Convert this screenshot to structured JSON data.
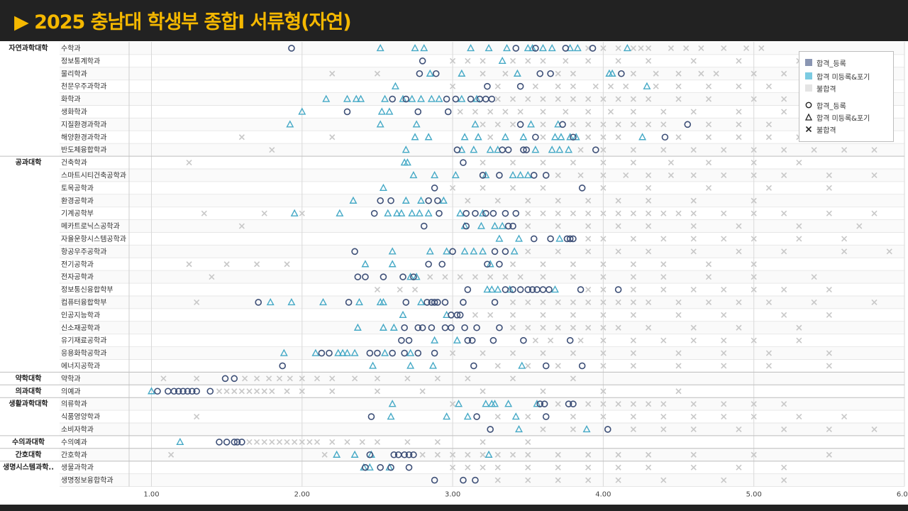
{
  "title": "▶ 2025 충남대 학생부 종합Ⅰ 서류형(자연)",
  "legend": {
    "items": [
      {
        "label": "합격_등록",
        "kind": "swatch",
        "color": "#8a96b3"
      },
      {
        "label": "합격 미등록&포기",
        "kind": "swatch",
        "color": "#7ccbe2"
      },
      {
        "label": "불합격",
        "kind": "swatch",
        "color": "#e4e4e4"
      },
      {
        "label": "합격_등록",
        "kind": "circle"
      },
      {
        "label": "합격 미등록&포기",
        "kind": "triangle"
      },
      {
        "label": "불합격",
        "kind": "cross"
      }
    ]
  },
  "colors": {
    "registered": "#3d4f77",
    "not_registered": "#45a9c6",
    "rejected": "#c8c8c8",
    "grid": "#d9d9d9",
    "band": "#efefef"
  },
  "chart_data": {
    "type": "scatter",
    "xlim": [
      1.0,
      6.0
    ],
    "xticks": [
      "1.00",
      "2.00",
      "3.00",
      "4.00",
      "5.00",
      "6.00"
    ],
    "groups": [
      {
        "name": "자연과학대학",
        "start": 0,
        "end": 8
      },
      {
        "name": "공과대학",
        "start": 9,
        "end": 25
      },
      {
        "name": "약학대학",
        "start": 26,
        "end": 26
      },
      {
        "name": "의과대학",
        "start": 27,
        "end": 27
      },
      {
        "name": "생활과학대학",
        "start": 28,
        "end": 30
      },
      {
        "name": "수의과대학",
        "start": 31,
        "end": 31
      },
      {
        "name": "간호대학",
        "start": 32,
        "end": 32
      },
      {
        "name": "생명시스템과학..",
        "start": 33,
        "end": 34
      }
    ],
    "departments": [
      {
        "name": "수학과",
        "reg": [
          1.93,
          3.42,
          3.55,
          3.75,
          3.93
        ],
        "unreg": [
          2.52,
          2.75,
          2.81,
          3.12,
          3.24,
          3.36,
          3.5,
          3.53,
          3.6,
          3.66,
          3.78,
          3.83,
          4.16
        ],
        "rej": [
          3.9,
          4.0,
          4.1,
          4.2,
          4.25,
          4.3,
          4.45,
          4.55,
          4.65,
          4.8,
          4.95,
          5.05
        ]
      },
      {
        "name": "정보통계학과",
        "reg": [
          2.8
        ],
        "unreg": [
          3.33
        ],
        "rej": [
          3.0,
          3.1,
          3.2,
          3.4,
          3.5,
          3.6,
          3.75,
          3.9,
          4.1,
          4.3,
          4.6,
          4.9,
          5.3
        ]
      },
      {
        "name": "물리학과",
        "reg": [
          2.78,
          2.89,
          3.58,
          3.65,
          4.12
        ],
        "unreg": [
          2.85,
          3.06,
          3.43,
          4.04,
          4.06
        ],
        "rej": [
          2.2,
          2.5,
          3.2,
          3.35,
          3.7,
          3.8,
          4.2,
          4.35,
          4.5,
          4.65,
          4.75,
          5.0,
          5.2,
          5.5,
          5.75
        ]
      },
      {
        "name": "천문우주과학과",
        "reg": [
          3.23,
          3.45
        ],
        "unreg": [
          2.62,
          4.29
        ],
        "rej": [
          3.0,
          3.3,
          3.55,
          3.7,
          3.8,
          3.95,
          4.05,
          4.15,
          4.35,
          4.5,
          4.7,
          4.9,
          5.1
        ]
      },
      {
        "name": "화학과",
        "reg": [
          2.6,
          2.69,
          2.96,
          3.02,
          3.12,
          3.18,
          3.22,
          3.26
        ],
        "unreg": [
          2.16,
          2.3,
          2.36,
          2.39,
          2.55,
          2.67,
          2.73,
          2.79,
          2.86,
          2.91,
          3.06,
          3.16
        ],
        "rej": [
          3.3,
          3.4,
          3.5,
          3.6,
          3.7,
          3.8,
          3.9,
          4.0,
          4.1,
          4.2,
          4.3,
          4.5,
          4.7,
          5.0,
          5.2
        ]
      },
      {
        "name": "생화학과",
        "reg": [
          2.3,
          2.77,
          2.97
        ],
        "unreg": [
          2.0,
          2.53,
          2.58
        ],
        "rej": [
          3.05,
          3.15,
          3.25,
          3.35,
          3.45,
          3.6,
          3.75,
          3.9,
          4.05,
          4.2,
          4.4,
          4.6,
          4.9,
          5.2
        ]
      },
      {
        "name": "지질환경과학과",
        "reg": [
          3.45,
          3.73,
          4.56
        ],
        "unreg": [
          1.92,
          2.52,
          2.76,
          3.15,
          3.52,
          3.7
        ],
        "rej": [
          3.2,
          3.3,
          3.4,
          3.6,
          3.8,
          3.9,
          4.0,
          4.1,
          4.2,
          4.3,
          4.4,
          4.7,
          4.9,
          5.1
        ]
      },
      {
        "name": "해양환경과학과",
        "reg": [
          3.55,
          3.8,
          4.41
        ],
        "unreg": [
          2.75,
          2.84,
          3.08,
          3.17,
          3.35,
          3.47,
          3.68,
          3.72,
          3.78,
          3.82,
          4.26
        ],
        "rej": [
          1.6,
          2.2,
          3.25,
          3.6,
          3.9,
          4.0,
          4.1,
          4.5,
          4.7,
          4.9,
          5.1,
          5.3
        ]
      },
      {
        "name": "반도체융합학과",
        "reg": [
          3.03,
          3.33,
          3.37,
          3.47,
          3.49,
          3.95
        ],
        "unreg": [
          2.69,
          3.06,
          3.14,
          3.25,
          3.3,
          3.55,
          3.66,
          3.71,
          3.77
        ],
        "rej": [
          1.8,
          3.85,
          4.0,
          4.2,
          4.4,
          4.6,
          4.8,
          5.0,
          5.2,
          5.4,
          5.6,
          5.8
        ]
      },
      {
        "name": "건축학과",
        "reg": [
          3.07
        ],
        "unreg": [
          2.68,
          2.7
        ],
        "rej": [
          1.25,
          3.2,
          3.4,
          3.6,
          3.8,
          4.0,
          4.2,
          4.45,
          4.7,
          5.0,
          5.3
        ]
      },
      {
        "name": "스마트시티건축공학과",
        "reg": [
          3.2,
          3.31,
          3.54,
          3.62
        ],
        "unreg": [
          2.74,
          2.88,
          3.02,
          3.22,
          3.4,
          3.45,
          3.5
        ],
        "rej": [
          3.7,
          3.85,
          4.0,
          4.15,
          4.3,
          4.45,
          4.6,
          4.8,
          5.0,
          5.2,
          5.5,
          5.8
        ]
      },
      {
        "name": "토목공학과",
        "reg": [
          2.88,
          3.86
        ],
        "unreg": [
          2.54
        ],
        "rej": [
          3.0,
          3.2,
          3.4,
          3.6,
          4.0,
          4.3,
          4.7,
          5.1,
          5.5
        ]
      },
      {
        "name": "환경공학과",
        "reg": [
          2.52,
          2.59,
          2.84,
          2.9
        ],
        "unreg": [
          2.34,
          2.69,
          2.79,
          2.94
        ],
        "rej": [
          3.1,
          3.3,
          3.5,
          3.7,
          3.9,
          4.1,
          4.3,
          4.6,
          5.0
        ]
      },
      {
        "name": "기계공학부",
        "reg": [
          2.48,
          2.91,
          3.09,
          3.15,
          3.22,
          3.27,
          3.35,
          3.42
        ],
        "unreg": [
          1.95,
          2.25,
          2.57,
          2.63,
          2.66,
          2.73,
          2.78,
          2.84,
          3.05,
          3.2
        ],
        "rej": [
          1.35,
          1.75,
          2.0,
          3.5,
          3.6,
          3.7,
          3.8,
          3.9,
          4.0,
          4.1,
          4.2,
          4.3,
          4.4,
          4.5,
          4.6,
          4.8,
          5.0,
          5.2,
          5.5,
          5.8
        ]
      },
      {
        "name": "메카트로닉스공학과",
        "reg": [
          2.81,
          3.09,
          3.37,
          3.4
        ],
        "unreg": [
          3.08,
          3.19,
          3.28,
          3.33
        ],
        "rej": [
          1.6,
          3.5,
          3.7,
          3.9,
          4.1,
          4.3,
          4.6,
          4.9,
          5.3,
          5.7
        ]
      },
      {
        "name": "자율운항시스템공학과",
        "reg": [
          3.54,
          3.65,
          3.76,
          3.78,
          3.8
        ],
        "unreg": [
          3.31,
          3.44,
          3.71
        ],
        "rej": [
          3.9,
          4.0,
          4.2,
          4.4,
          4.6,
          4.8,
          5.0,
          5.3,
          5.6
        ]
      },
      {
        "name": "항공우주공학과",
        "reg": [
          2.35,
          3.0,
          3.28,
          3.35
        ],
        "unreg": [
          2.6,
          2.85,
          2.96,
          3.08,
          3.14,
          3.2,
          3.41
        ],
        "rej": [
          3.5,
          3.7,
          3.9,
          4.1,
          4.3,
          4.6,
          4.9,
          5.2,
          5.6,
          5.9
        ]
      },
      {
        "name": "전기공학과",
        "reg": [
          2.84,
          2.93,
          3.23,
          3.31
        ],
        "unreg": [
          2.42,
          2.6,
          3.25
        ],
        "rej": [
          1.25,
          1.5,
          1.7,
          1.9,
          3.4,
          3.6,
          3.8,
          4.0,
          4.2,
          4.4,
          4.7,
          5.0
        ]
      },
      {
        "name": "전자공학과",
        "reg": [
          2.37,
          2.42,
          2.54,
          2.67,
          2.74
        ],
        "unreg": [
          2.72,
          2.76
        ],
        "rej": [
          1.4,
          2.85,
          2.95,
          3.05,
          3.15,
          3.25,
          3.35,
          3.45,
          3.6,
          3.8,
          4.0,
          4.2,
          4.4,
          4.7,
          5.0,
          5.4
        ]
      },
      {
        "name": "정보통신융합학부",
        "reg": [
          3.1,
          3.35,
          3.4,
          3.45,
          3.5,
          3.53,
          3.56,
          3.6,
          3.64,
          3.85,
          4.1
        ],
        "unreg": [
          3.23,
          3.26,
          3.3,
          3.38,
          3.68
        ],
        "rej": [
          2.5,
          2.65,
          2.75,
          3.9,
          4.0,
          4.2,
          4.4,
          4.6,
          4.8,
          5.0,
          5.2,
          5.5
        ]
      },
      {
        "name": "컴퓨터융합학부",
        "reg": [
          1.71,
          2.31,
          2.69,
          2.83,
          2.86,
          2.88,
          2.9,
          2.95,
          3.07,
          3.28
        ],
        "unreg": [
          1.79,
          1.93,
          2.14,
          2.38,
          2.52,
          2.54,
          2.79
        ],
        "rej": [
          1.3,
          3.4,
          3.5,
          3.6,
          3.7,
          3.8,
          3.9,
          4.0,
          4.1,
          4.2,
          4.3,
          4.5,
          4.7,
          4.9,
          5.1,
          5.4,
          5.8
        ]
      },
      {
        "name": "인공지능학과",
        "reg": [
          2.99,
          3.03,
          3.05
        ],
        "unreg": [
          2.67,
          2.96
        ],
        "rej": [
          3.15,
          3.25,
          3.4,
          3.6,
          3.8,
          4.0,
          4.2,
          4.5,
          4.8,
          5.2,
          5.5
        ]
      },
      {
        "name": "신소재공학과",
        "reg": [
          2.68,
          2.77,
          2.8,
          2.86,
          2.95,
          2.99,
          3.08,
          3.16,
          3.31
        ],
        "unreg": [
          2.37,
          2.54,
          2.61
        ],
        "rej": [
          3.4,
          3.5,
          3.6,
          3.7,
          3.8,
          3.9,
          4.0,
          4.1,
          4.3,
          4.6,
          4.9,
          5.3
        ]
      },
      {
        "name": "유기재료공학과",
        "reg": [
          2.66,
          2.71,
          3.1,
          3.13,
          3.27,
          3.47,
          3.78
        ],
        "unreg": [
          2.88,
          3.03
        ],
        "rej": [
          3.55,
          3.65,
          3.85,
          4.0,
          4.2,
          4.4,
          4.6,
          4.8,
          5.0,
          5.3
        ]
      },
      {
        "name": "응용화학공학과",
        "reg": [
          2.13,
          2.18,
          2.45,
          2.5,
          2.6,
          2.68,
          2.77,
          2.88
        ],
        "unreg": [
          1.88,
          2.09,
          2.24,
          2.27,
          2.3,
          2.35,
          2.55,
          2.72
        ],
        "rej": [
          3.0,
          3.2,
          3.4,
          3.6,
          3.8,
          4.0,
          4.2,
          4.5,
          4.8,
          5.1,
          5.5
        ]
      },
      {
        "name": "에너지공학과",
        "reg": [
          1.87,
          3.14,
          3.62,
          3.86
        ],
        "unreg": [
          2.47,
          2.72,
          2.87,
          3.46
        ],
        "rej": [
          3.3,
          3.5,
          3.7,
          4.0,
          4.2,
          4.5,
          4.8,
          5.1,
          5.5
        ]
      },
      {
        "name": "약학과",
        "reg": [
          1.49,
          1.55
        ],
        "unreg": [],
        "rej": [
          1.08,
          1.3,
          1.62,
          1.7,
          1.78,
          1.85,
          1.92,
          2.0,
          2.1,
          2.2,
          2.35,
          2.5,
          2.7,
          2.9,
          3.1,
          3.4,
          3.8
        ]
      },
      {
        "name": "의예과",
        "reg": [
          1.04,
          1.11,
          1.15,
          1.18,
          1.21,
          1.24,
          1.27,
          1.3,
          1.39
        ],
        "unreg": [
          1.0
        ],
        "rej": [
          1.45,
          1.5,
          1.55,
          1.6,
          1.65,
          1.7,
          1.75,
          1.8,
          1.9,
          2.0,
          2.2,
          2.5,
          2.8,
          3.2,
          3.6,
          4.0,
          4.5
        ]
      },
      {
        "name": "의류학과",
        "reg": [
          3.58,
          3.61,
          3.77,
          3.8
        ],
        "unreg": [
          2.6,
          3.04,
          3.22,
          3.26,
          3.28,
          3.37,
          3.56
        ],
        "rej": [
          3.0,
          3.7,
          3.9,
          4.0,
          4.1,
          4.2,
          4.3,
          4.4,
          4.6,
          4.8,
          5.0,
          5.2
        ]
      },
      {
        "name": "식품영양학과",
        "reg": [
          2.46,
          3.16,
          3.62
        ],
        "unreg": [
          2.59,
          2.96,
          3.1,
          3.42
        ],
        "rej": [
          1.3,
          3.3,
          3.5,
          3.8,
          4.0,
          4.2,
          4.4,
          4.6,
          4.8,
          5.0,
          5.3,
          5.6
        ]
      },
      {
        "name": "소비자학과",
        "reg": [
          3.25,
          4.03
        ],
        "unreg": [
          3.44,
          3.89
        ],
        "rej": [
          3.6,
          3.8,
          4.2,
          4.4,
          4.6,
          4.9,
          5.2,
          5.5,
          5.8
        ]
      },
      {
        "name": "수의예과",
        "reg": [
          1.45,
          1.5,
          1.55,
          1.57,
          1.6
        ],
        "unreg": [
          1.19
        ],
        "rej": [
          1.65,
          1.7,
          1.75,
          1.8,
          1.85,
          1.9,
          1.95,
          2.0,
          2.05,
          2.1,
          2.2,
          2.3,
          2.4,
          2.5,
          2.7,
          2.9,
          3.2,
          3.5
        ]
      },
      {
        "name": "간호학과",
        "reg": [
          2.45,
          2.61,
          2.64,
          2.68,
          2.71,
          2.74
        ],
        "unreg": [
          2.23,
          2.35,
          2.46,
          3.24
        ],
        "rej": [
          1.13,
          2.15,
          2.8,
          2.9,
          3.0,
          3.1,
          3.2,
          3.3,
          3.4,
          3.5,
          3.7,
          3.9,
          4.1,
          4.3,
          4.6,
          5.0,
          5.5
        ]
      },
      {
        "name": "생물과학과",
        "reg": [
          2.42,
          2.52,
          2.59,
          2.71
        ],
        "unreg": [
          2.41,
          2.45,
          2.58
        ],
        "rej": [
          3.0,
          3.1,
          3.2,
          3.3,
          3.5,
          3.7,
          3.9,
          4.1,
          4.3,
          4.6,
          4.9,
          5.2
        ]
      },
      {
        "name": "생명정보융합학과",
        "reg": [
          2.88,
          3.07,
          3.15
        ],
        "unreg": [],
        "rej": [
          3.3,
          3.5,
          3.7,
          3.9,
          4.1,
          4.4,
          4.8,
          5.2
        ]
      }
    ]
  }
}
